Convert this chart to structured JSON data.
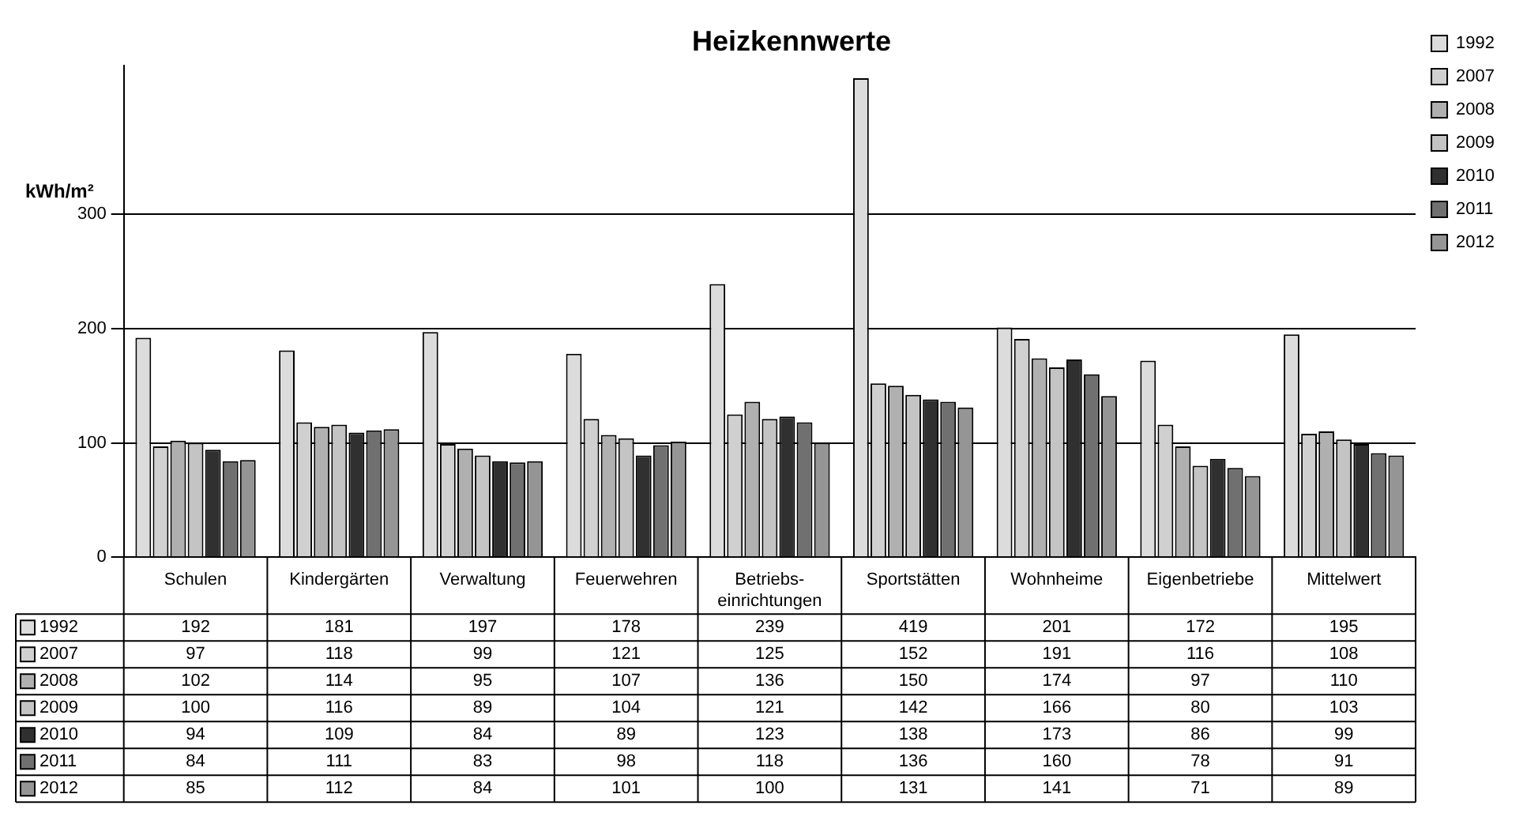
{
  "chart_data": {
    "type": "bar",
    "title": "Heizkennwerte",
    "ylabel": "kWh/m²",
    "categories": [
      "Schulen",
      "Kindergärten",
      "Verwaltung",
      "Feuerwehren",
      "Betriebs-\neinrichtungen",
      "Sportstätten",
      "Wohnheime",
      "Eigenbetriebe",
      "Mittelwert"
    ],
    "series": [
      {
        "name": "1992",
        "color": "#dcdcdc",
        "values": [
          192,
          181,
          197,
          178,
          239,
          419,
          201,
          172,
          195
        ]
      },
      {
        "name": "2007",
        "color": "#d0d0d0",
        "values": [
          97,
          118,
          99,
          121,
          125,
          152,
          191,
          116,
          108
        ]
      },
      {
        "name": "2008",
        "color": "#b0b0b0",
        "values": [
          102,
          114,
          95,
          107,
          136,
          150,
          174,
          97,
          110
        ]
      },
      {
        "name": "2009",
        "color": "#c4c4c4",
        "values": [
          100,
          116,
          89,
          104,
          121,
          142,
          166,
          80,
          103
        ]
      },
      {
        "name": "2010",
        "color": "#303030",
        "values": [
          94,
          109,
          84,
          89,
          123,
          138,
          173,
          86,
          99
        ]
      },
      {
        "name": "2011",
        "color": "#707070",
        "values": [
          84,
          111,
          83,
          98,
          118,
          136,
          160,
          78,
          91
        ]
      },
      {
        "name": "2012",
        "color": "#959595",
        "values": [
          85,
          112,
          84,
          101,
          100,
          131,
          141,
          71,
          89
        ]
      }
    ],
    "ylim": [
      0,
      430
    ],
    "yticks": [
      0,
      100,
      200,
      300
    ],
    "grid": "y",
    "legend": "right",
    "data_labels": true
  }
}
